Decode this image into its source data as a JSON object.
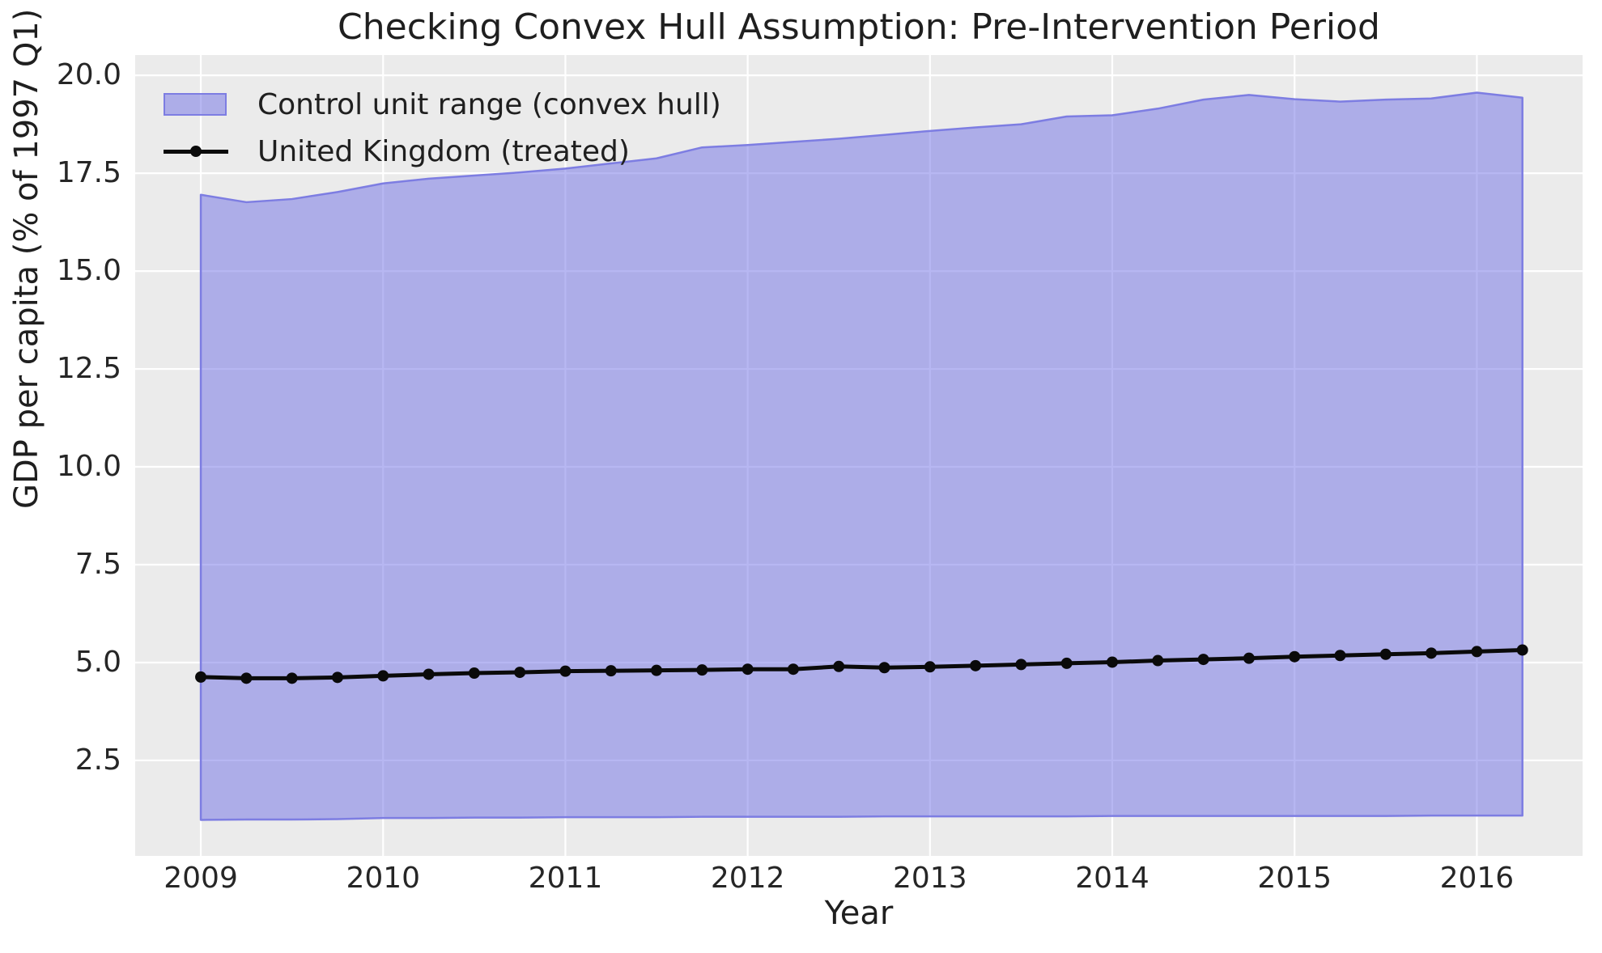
{
  "title": "Checking Convex Hull Assumption: Pre-Intervention Period",
  "legend": {
    "hull_label": "Control unit range (convex hull)",
    "uk_label": "United Kingdom (treated)"
  },
  "colors": {
    "figure_bg": "#ffffff",
    "axes_bg": "#ebebeb",
    "grid": "#ffffff",
    "hull_fill": "rgba(112,112,229,0.5)",
    "hull_edge": "#7d7de2",
    "uk_line": "#0a0a0a",
    "text": "#262626"
  },
  "chart_data": {
    "type": "area",
    "title": "Checking Convex Hull Assumption: Pre-Intervention Period",
    "xlabel": "Year",
    "ylabel": "GDP per capita (% of 1997 Q1)",
    "xlim": [
      2008.64,
      2016.58
    ],
    "ylim": [
      0.06,
      20.52
    ],
    "grid": true,
    "legend_position": "upper left",
    "x_tick_values": [
      2009,
      2010,
      2011,
      2012,
      2013,
      2014,
      2015,
      2016
    ],
    "x_tick_labels": [
      "2009",
      "2010",
      "2011",
      "2012",
      "2013",
      "2014",
      "2015",
      "2016"
    ],
    "y_tick_values": [
      2.5,
      5.0,
      7.5,
      10.0,
      12.5,
      15.0,
      17.5,
      20.0
    ],
    "y_tick_labels": [
      "2.5",
      "5.0",
      "7.5",
      "10.0",
      "12.5",
      "15.0",
      "17.5",
      "20.0"
    ],
    "x": [
      2009.0,
      2009.25,
      2009.5,
      2009.75,
      2010.0,
      2010.25,
      2010.5,
      2010.75,
      2011.0,
      2011.25,
      2011.5,
      2011.75,
      2012.0,
      2012.25,
      2012.5,
      2012.75,
      2013.0,
      2013.25,
      2013.5,
      2013.75,
      2014.0,
      2014.25,
      2014.5,
      2014.75,
      2015.0,
      2015.25,
      2015.5,
      2015.75,
      2016.0,
      2016.25
    ],
    "series": [
      {
        "name": "Control unit range (convex hull)",
        "type": "band",
        "upper": [
          16.95,
          16.76,
          16.84,
          17.02,
          17.24,
          17.36,
          17.44,
          17.52,
          17.62,
          17.75,
          17.88,
          18.16,
          18.22,
          18.3,
          18.38,
          18.48,
          18.58,
          18.67,
          18.75,
          18.95,
          18.98,
          19.15,
          19.38,
          19.5,
          19.39,
          19.33,
          19.38,
          19.41,
          19.56,
          19.43
        ],
        "lower": [
          0.98,
          0.99,
          0.99,
          1.0,
          1.03,
          1.03,
          1.04,
          1.04,
          1.05,
          1.05,
          1.05,
          1.06,
          1.06,
          1.06,
          1.06,
          1.07,
          1.07,
          1.07,
          1.07,
          1.07,
          1.08,
          1.08,
          1.08,
          1.08,
          1.08,
          1.08,
          1.08,
          1.09,
          1.09,
          1.09
        ]
      },
      {
        "name": "United Kingdom (treated)",
        "type": "line_with_markers",
        "values": [
          4.63,
          4.6,
          4.6,
          4.62,
          4.66,
          4.7,
          4.73,
          4.75,
          4.78,
          4.79,
          4.8,
          4.81,
          4.83,
          4.83,
          4.9,
          4.87,
          4.89,
          4.92,
          4.95,
          4.98,
          5.01,
          5.05,
          5.08,
          5.11,
          5.15,
          5.18,
          5.21,
          5.24,
          5.28,
          5.32
        ]
      }
    ]
  }
}
